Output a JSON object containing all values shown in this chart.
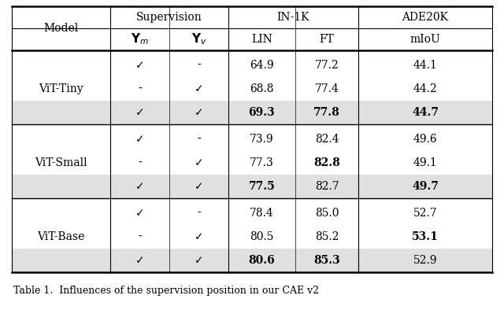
{
  "groups": [
    {
      "model": "ViT-Tiny",
      "rows": [
        {
          "ym": "✓",
          "yv": "-",
          "lin": "64.9",
          "ft": "77.2",
          "miou": "44.1",
          "bold_lin": false,
          "bold_ft": false,
          "bold_miou": false,
          "highlight": false
        },
        {
          "ym": "-",
          "yv": "✓",
          "lin": "68.8",
          "ft": "77.4",
          "miou": "44.2",
          "bold_lin": false,
          "bold_ft": false,
          "bold_miou": false,
          "highlight": false
        },
        {
          "ym": "✓",
          "yv": "✓",
          "lin": "69.3",
          "ft": "77.8",
          "miou": "44.7",
          "bold_lin": true,
          "bold_ft": true,
          "bold_miou": true,
          "highlight": true
        }
      ]
    },
    {
      "model": "ViT-Small",
      "rows": [
        {
          "ym": "✓",
          "yv": "-",
          "lin": "73.9",
          "ft": "82.4",
          "miou": "49.6",
          "bold_lin": false,
          "bold_ft": false,
          "bold_miou": false,
          "highlight": false
        },
        {
          "ym": "-",
          "yv": "✓",
          "lin": "77.3",
          "ft": "82.8",
          "miou": "49.1",
          "bold_lin": false,
          "bold_ft": true,
          "bold_miou": false,
          "highlight": false
        },
        {
          "ym": "✓",
          "yv": "✓",
          "lin": "77.5",
          "ft": "82.7",
          "miou": "49.7",
          "bold_lin": true,
          "bold_ft": false,
          "bold_miou": true,
          "highlight": true
        }
      ]
    },
    {
      "model": "ViT-Base",
      "rows": [
        {
          "ym": "✓",
          "yv": "-",
          "lin": "78.4",
          "ft": "85.0",
          "miou": "52.7",
          "bold_lin": false,
          "bold_ft": false,
          "bold_miou": false,
          "highlight": false
        },
        {
          "ym": "-",
          "yv": "✓",
          "lin": "80.5",
          "ft": "85.2",
          "miou": "53.1",
          "bold_lin": false,
          "bold_ft": false,
          "bold_miou": true,
          "highlight": false
        },
        {
          "ym": "✓",
          "yv": "✓",
          "lin": "80.6",
          "ft": "85.3",
          "miou": "52.9",
          "bold_lin": true,
          "bold_ft": true,
          "bold_miou": false,
          "highlight": true
        }
      ]
    }
  ],
  "highlight_color": "#e0e0e0",
  "bg_color": "#ffffff",
  "fig_width": 6.4,
  "fig_height": 4.08,
  "caption": "Table 1.  Influences of the supervision position in our CAE v2"
}
